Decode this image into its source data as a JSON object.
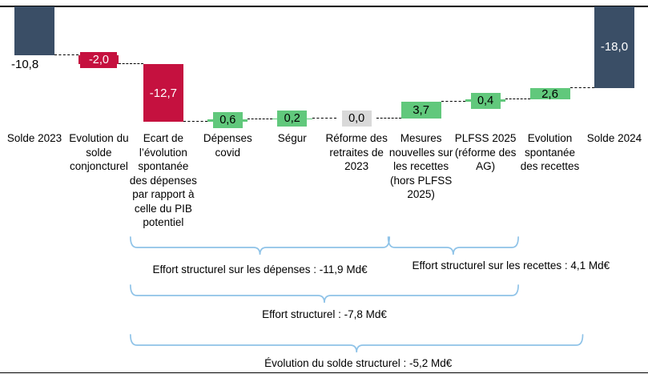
{
  "colors": {
    "total": "#3a4e66",
    "decrease": "#c5113f",
    "increase": "#61c87c",
    "zero": "#d9d9d9",
    "brace": "#8fc3e8",
    "connector": "#000000",
    "label_on_dark": "#ffffff",
    "label_on_light": "#000000"
  },
  "chart_data": {
    "type": "bar",
    "subtype": "waterfall",
    "title": "",
    "unit": "Md€",
    "baseline": 0,
    "items": [
      {
        "category": "Solde 2023",
        "value": -10.8,
        "display": "-10,8",
        "kind": "total",
        "label_placement": "below"
      },
      {
        "category": "Evolution du solde conjoncturel",
        "value": -2.0,
        "display": "-2,0",
        "kind": "decrease",
        "label_placement": "box"
      },
      {
        "category": "Ecart de l’évolution spontanée des dépenses par rapport à celle du PIB potentiel",
        "value": -12.7,
        "display": "-12,7",
        "kind": "decrease",
        "label_placement": "inside"
      },
      {
        "category": "Dépenses covid",
        "value": 0.6,
        "display": "0,6",
        "kind": "increase",
        "label_placement": "box"
      },
      {
        "category": "Ségur",
        "value": 0.2,
        "display": "0,2",
        "kind": "increase",
        "label_placement": "box"
      },
      {
        "category": "Réforme des retraites de 2023",
        "value": 0.0,
        "display": "0,0",
        "kind": "zero",
        "label_placement": "box"
      },
      {
        "category": "Mesures nouvelles sur les recettes (hors PLFSS 2025)",
        "value": 3.7,
        "display": "3,7",
        "kind": "increase",
        "label_placement": "inside"
      },
      {
        "category": "PLFSS 2025 (réforme des AG)",
        "value": 0.4,
        "display": "0,4",
        "kind": "increase",
        "label_placement": "box"
      },
      {
        "category": "Evolution spontanée des recettes",
        "value": 2.6,
        "display": "2,6",
        "kind": "increase",
        "label_placement": "inside"
      },
      {
        "category": "Solde 2024",
        "value": -18.0,
        "display": "-18,0",
        "kind": "total",
        "label_placement": "inside"
      }
    ],
    "annotations": [
      {
        "label": "Effort structurel sur les dépenses : -11,9 Md€",
        "from_index": 2,
        "to_index": 5,
        "value": -11.9
      },
      {
        "label": "Effort structurel sur les recettes : 4,1 Md€",
        "from_index": 6,
        "to_index": 7,
        "value": 4.1
      },
      {
        "label": "Effort structurel : -7,8 Md€",
        "from_index": 2,
        "to_index": 7,
        "value": -7.8
      },
      {
        "label": "Évolution du solde structurel : -5,2 Md€",
        "from_index": 2,
        "to_index": 8,
        "value": -5.2
      }
    ]
  }
}
